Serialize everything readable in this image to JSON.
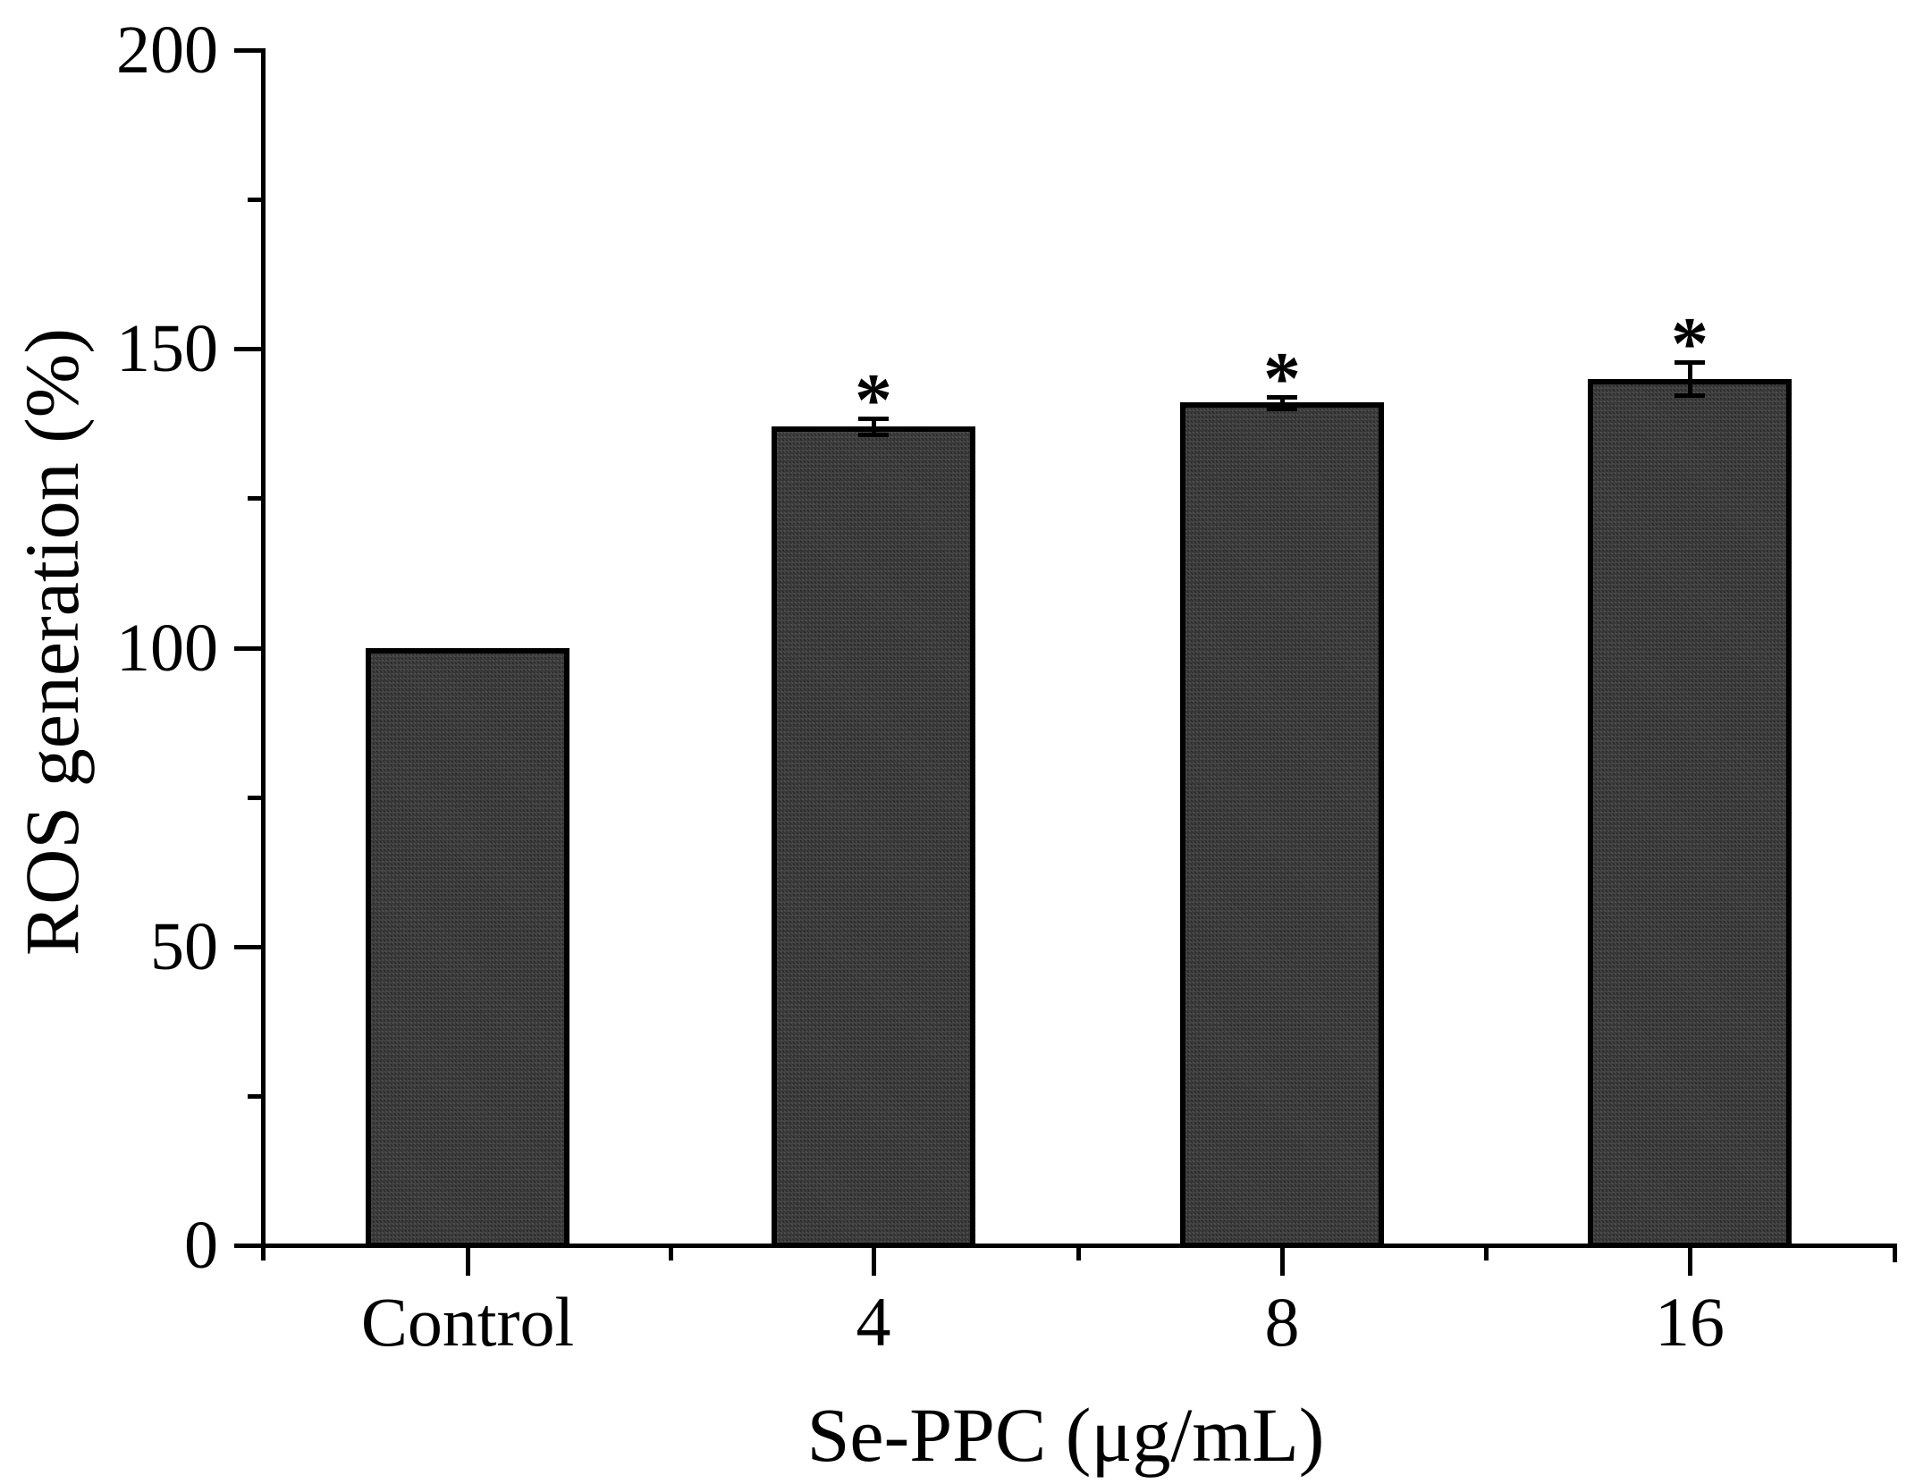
{
  "chart_data": {
    "type": "bar",
    "title": "",
    "xlabel": "Se-PPC (μg/mL)",
    "ylabel": "ROS generation (%)",
    "categories": [
      "Control",
      "4",
      "8",
      "16"
    ],
    "values": [
      100,
      137,
      141,
      145
    ],
    "errors": [
      0,
      1.3,
      1.0,
      2.8
    ],
    "significance": [
      "",
      "*",
      "*",
      "*"
    ],
    "ylim": [
      0,
      200
    ],
    "y_major_ticks": [
      0,
      50,
      100,
      150,
      200
    ],
    "y_major_tick_labels": [
      "0",
      "50",
      "100",
      "150",
      "200"
    ],
    "y_minor_ticks": [
      25,
      75,
      125,
      175
    ],
    "grid": false,
    "legend": null,
    "bar_fill_color": "#383838",
    "bar_border_color": "#000000",
    "axis_color": "#000000",
    "background_color": "#ffffff"
  }
}
